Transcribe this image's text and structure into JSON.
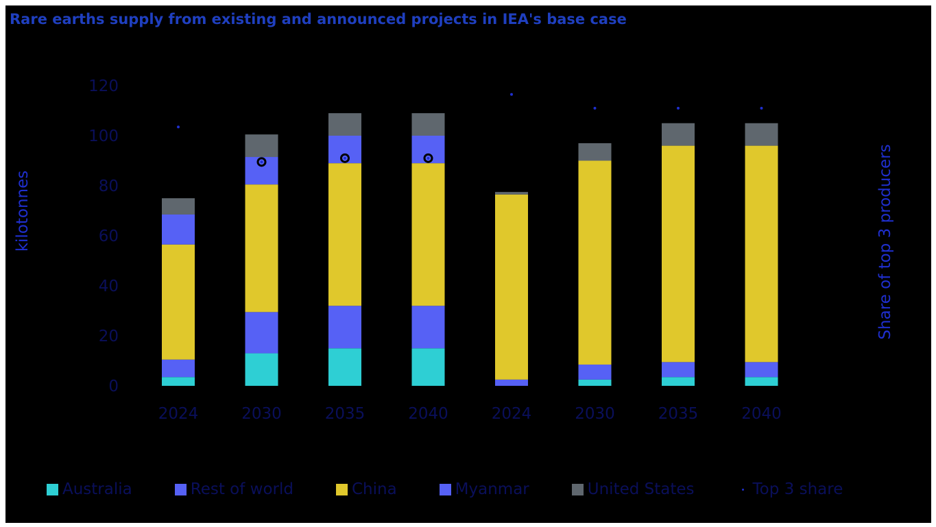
{
  "title": "Rare earths supply from existing and announced projects in IEA's base case",
  "chart_data": {
    "type": "bar",
    "stacked": true,
    "title": "Rare earths supply from existing and announced projects in IEA's base case",
    "categories": [
      "2024",
      "2030",
      "2035",
      "2040",
      "2024",
      "2030",
      "2035",
      "2040"
    ],
    "ylabel": "kilotonnes",
    "y2label": "Share of top 3 producers",
    "ylim": [
      0,
      120
    ],
    "yticks": [
      0,
      20,
      40,
      60,
      80,
      100,
      120
    ],
    "legend_position": "bottom",
    "series": [
      {
        "name": "Australia",
        "color": "#2ecfd4",
        "values": [
          3.5,
          13,
          15,
          15,
          0,
          2.5,
          3.5,
          3.5
        ]
      },
      {
        "name": "Rest of world",
        "color": "#5661f5",
        "values": [
          7,
          16.5,
          17,
          17,
          2.5,
          6,
          6,
          6
        ]
      },
      {
        "name": "China",
        "color": "#e0c82c",
        "values": [
          46,
          51,
          57,
          57,
          74,
          81.5,
          86.5,
          86.5
        ]
      },
      {
        "name": "Myanmar",
        "color": "#5661f5",
        "values": [
          12,
          11,
          11,
          11,
          0,
          0,
          0,
          0
        ]
      },
      {
        "name": "United States",
        "color": "#5f676e",
        "values": [
          6.5,
          9,
          9,
          9,
          1,
          7,
          9,
          9
        ]
      }
    ],
    "top3_share": {
      "name": "Top 3 share",
      "color": "#1f2fcf",
      "values": [
        103.5,
        89.5,
        91,
        91,
        116.5,
        111,
        111,
        111
      ]
    },
    "circle_markers": [
      null,
      89.5,
      91,
      91,
      null,
      null,
      null,
      null
    ]
  }
}
